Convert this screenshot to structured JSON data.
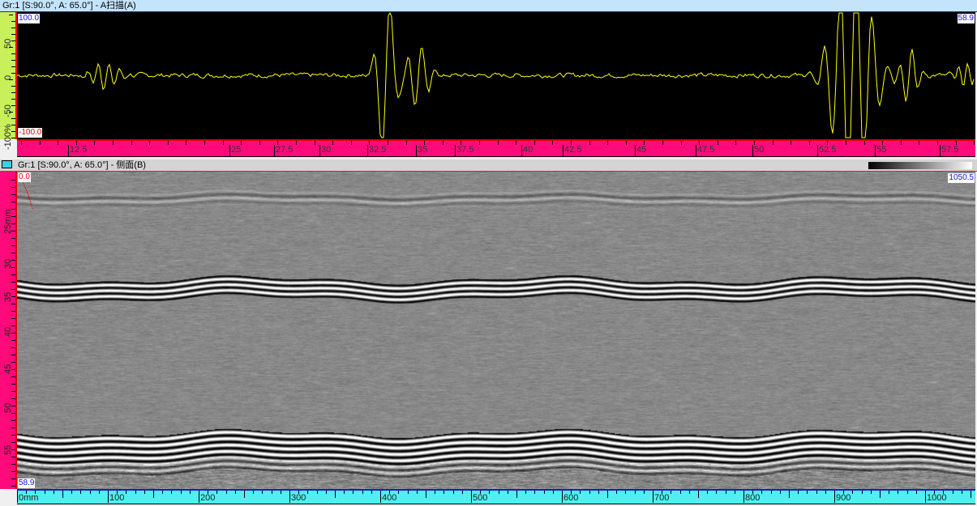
{
  "ascan": {
    "title": "Gr:1 [S:90.0°, A: 65.0°] - A扫描(A)",
    "amp_max": "100.0",
    "amp_min": "-100.0",
    "cursor_value": "58.9",
    "vaxis_labels": [
      "50",
      "0",
      "-50",
      "-100%"
    ],
    "haxis_labels": [
      "12.5",
      "25",
      "27.5",
      "30",
      "32.5",
      "35",
      "37.5",
      "40",
      "42.5",
      "45",
      "47.5",
      "50",
      "52.5",
      "55",
      "57.5"
    ],
    "signal_color": "#ffff00",
    "background_color": "#000000"
  },
  "bscan": {
    "title": "Gr:1 [S:90.0°, A: 65.0°] - 侧面(B)",
    "icon": "monitor-icon",
    "depth_start": "0.0",
    "scan_end": "1050.5",
    "depth_end": "58.9",
    "vaxis_labels": [
      "25mm",
      "30",
      "35",
      "40",
      "45",
      "50",
      "55"
    ],
    "haxis_labels": [
      "0mm",
      "100",
      "200",
      "300",
      "400",
      "500",
      "600",
      "700",
      "800",
      "900",
      "1000"
    ],
    "palette": "grayscale"
  }
}
